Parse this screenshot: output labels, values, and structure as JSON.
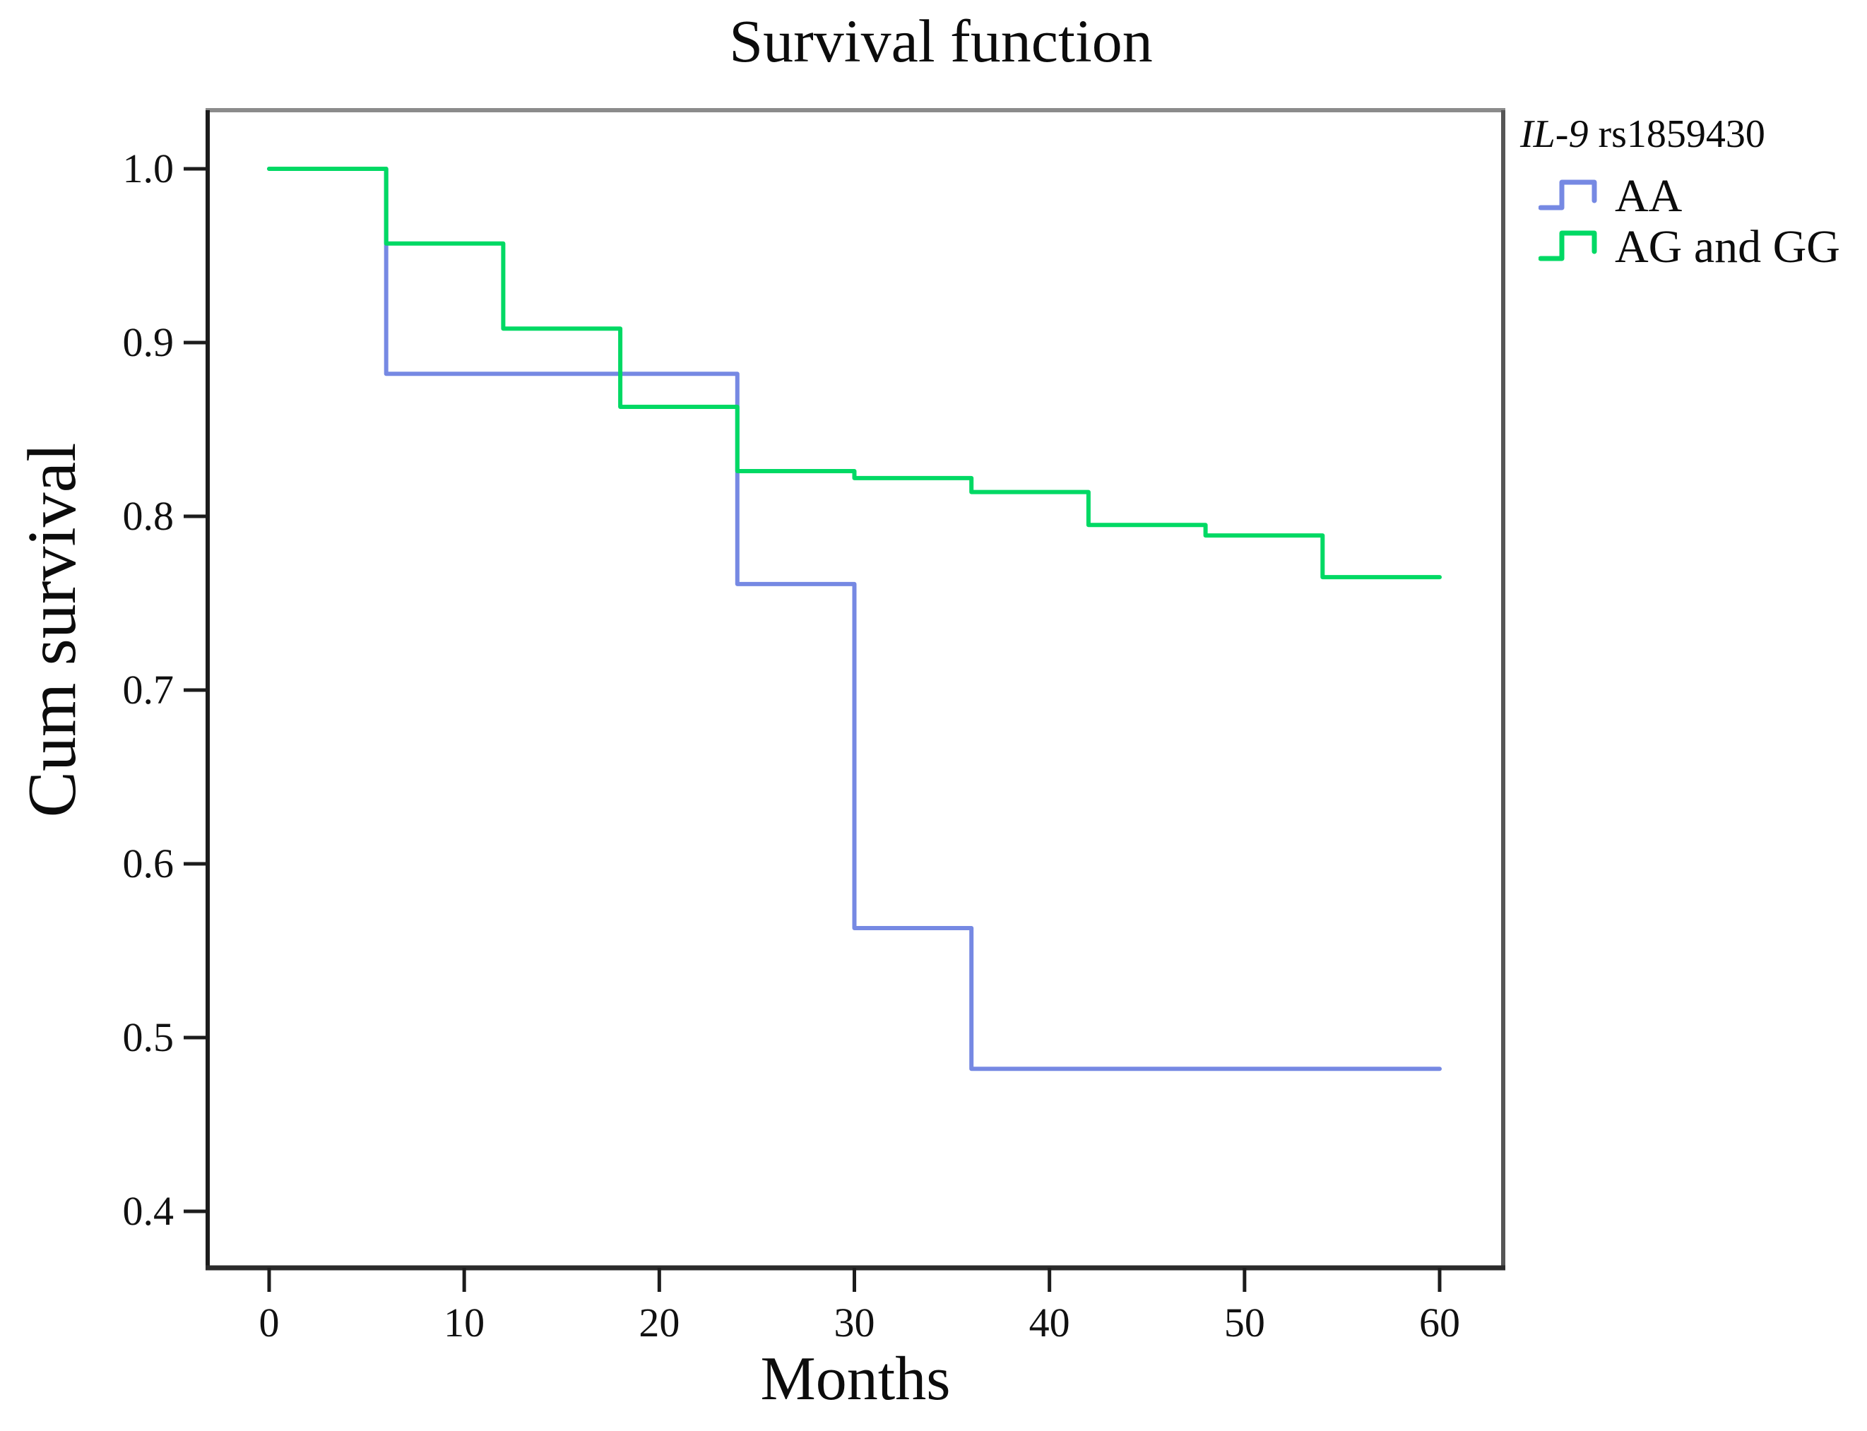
{
  "title": "Survival function",
  "y_axis": {
    "label": "Cum survival",
    "ticks": [
      "1.0",
      "0.9",
      "0.8",
      "0.7",
      "0.6",
      "0.5",
      "0.4"
    ]
  },
  "x_axis": {
    "label": "Months",
    "ticks": [
      "0",
      "10",
      "20",
      "30",
      "40",
      "50",
      "60"
    ],
    "min": 0,
    "max": 60
  },
  "legend": {
    "title_gene": "IL-9",
    "title_rest": " rs1859430",
    "items": [
      {
        "label": "AA",
        "color": "#7689E3"
      },
      {
        "label": "AG and GG",
        "color": "#00D964"
      }
    ]
  },
  "frame_colors": {
    "top": "#8b8b8b",
    "right": "#565656",
    "left": "#1c1c1c",
    "bottom": "#2b2b2b",
    "tick": "#1c1c1c"
  },
  "chart_data": {
    "type": "line",
    "subtype": "kaplan-meier-step",
    "title": "Survival function",
    "xlabel": "Months",
    "ylabel": "Cum survival",
    "xlim": [
      0,
      60
    ],
    "ytick_values": [
      1.0,
      0.9,
      0.8,
      0.7,
      0.6,
      0.5,
      0.4
    ],
    "grid": false,
    "legend_title": "IL-9 rs1859430",
    "legend_position": "outside-top-right",
    "series": [
      {
        "name": "AA",
        "color": "#7689E3",
        "steps": [
          [
            0,
            1.0
          ],
          [
            6,
            0.882
          ],
          [
            24,
            0.761
          ],
          [
            30,
            0.563
          ],
          [
            36,
            0.482
          ]
        ],
        "end_x": 60
      },
      {
        "name": "AG and GG",
        "color": "#00D964",
        "steps": [
          [
            0,
            1.0
          ],
          [
            6,
            0.957
          ],
          [
            12,
            0.908
          ],
          [
            18,
            0.863
          ],
          [
            24,
            0.826
          ],
          [
            30,
            0.822
          ],
          [
            36,
            0.814
          ],
          [
            42,
            0.795
          ],
          [
            48,
            0.789
          ],
          [
            54,
            0.765
          ]
        ],
        "end_x": 60
      }
    ]
  }
}
